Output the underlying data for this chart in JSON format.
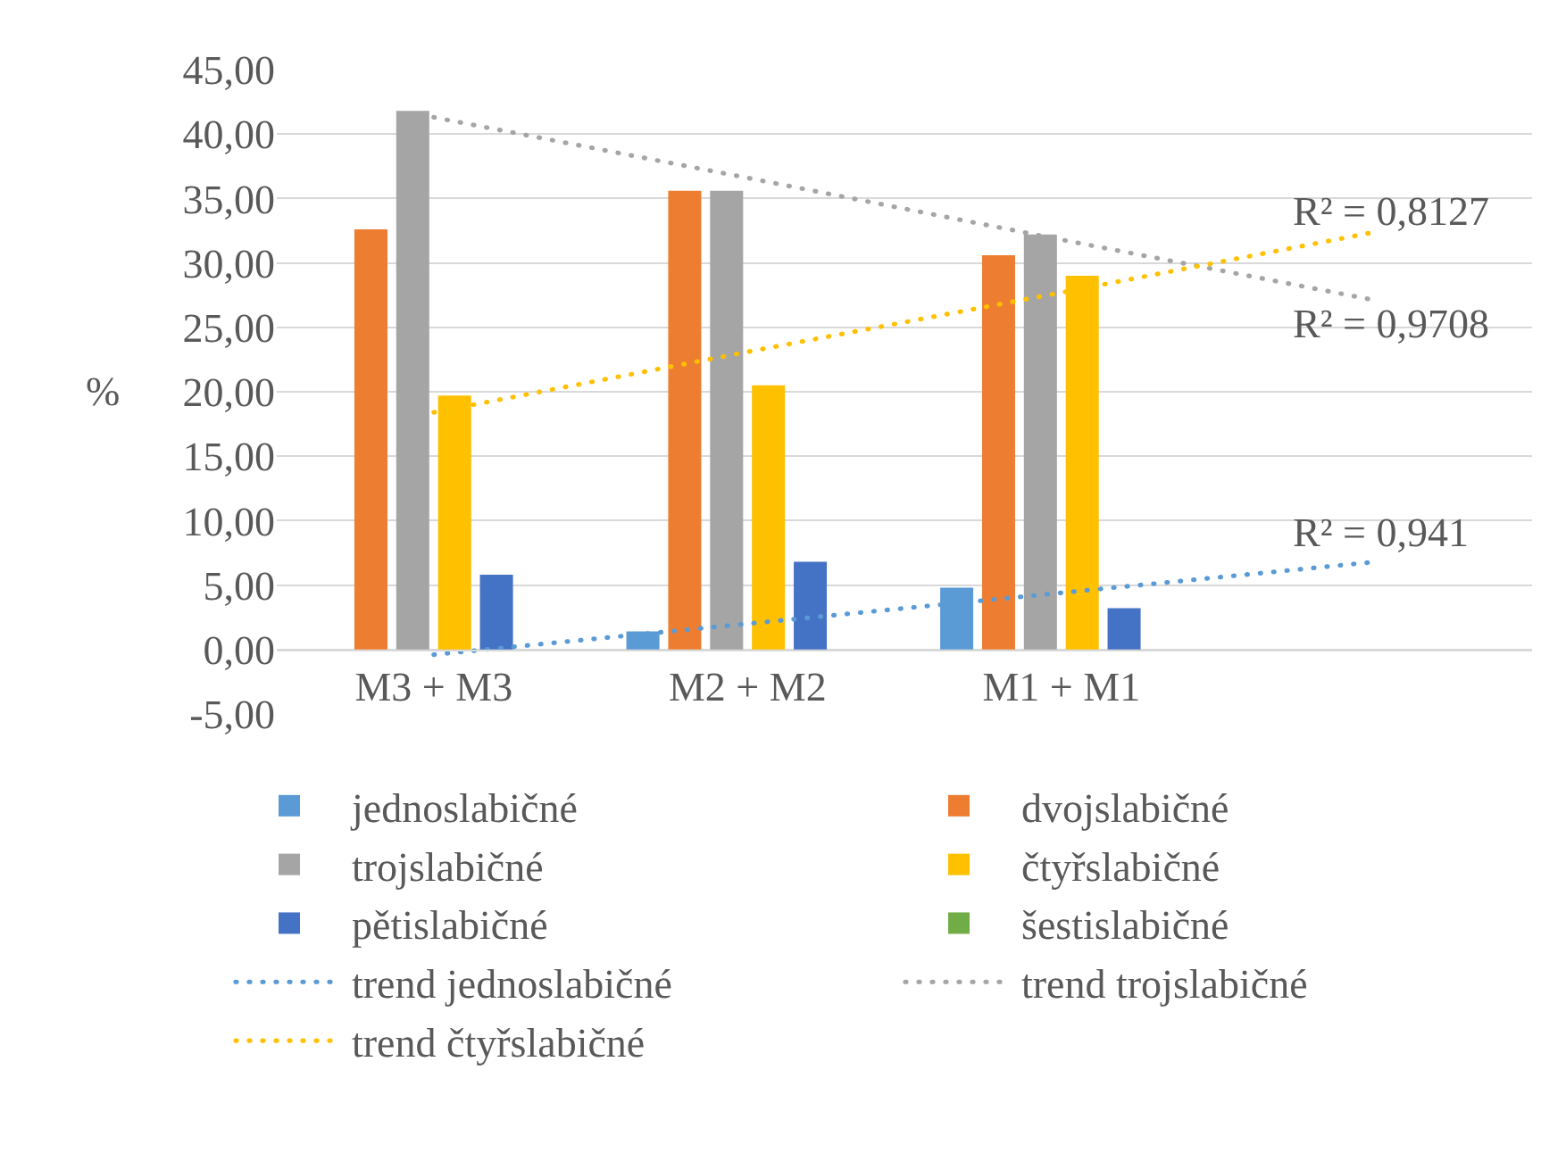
{
  "chart_data": {
    "type": "bar",
    "categories": [
      "M3 + M3",
      "M2 + M2",
      "M1 + M1",
      null
    ],
    "series": [
      {
        "name": "jednoslabičné",
        "color": "#5b9bd5",
        "values": [
          0,
          1.4,
          4.8,
          null
        ]
      },
      {
        "name": "dvojslabičné",
        "color": "#ed7d31",
        "values": [
          32.6,
          35.6,
          30.6,
          null
        ]
      },
      {
        "name": "trojslabičné",
        "color": "#a5a5a5",
        "values": [
          41.8,
          35.6,
          32.2,
          null
        ]
      },
      {
        "name": "čtyřslabičné",
        "color": "#ffc000",
        "values": [
          19.7,
          20.5,
          29.0,
          null
        ]
      },
      {
        "name": "pětislabičné",
        "color": "#4472c4",
        "values": [
          5.8,
          6.8,
          3.2,
          null
        ]
      },
      {
        "name": "šestislabičné",
        "color": "#70ad47",
        "values": [
          0,
          0,
          0,
          null
        ]
      },
      {
        "name": "trend jednoslabičné",
        "type": "line",
        "color": "#5b9bd5",
        "values": [
          -0.4,
          2.0,
          4.4,
          6.8
        ]
      },
      {
        "name": "trend trojslabičné",
        "type": "line",
        "color": "#a5a5a5",
        "values": [
          41.3,
          36.6,
          31.8,
          27.1
        ]
      },
      {
        "name": "trend čtyřslabičné",
        "type": "line",
        "color": "#ffc000",
        "values": [
          18.4,
          23.1,
          27.7,
          32.4
        ]
      }
    ],
    "ylabel": "%",
    "ylim": [
      -5,
      45
    ],
    "yticks": [
      {
        "value": -5,
        "label": "-5,00"
      },
      {
        "value": 0,
        "label": "0,00"
      },
      {
        "value": 5,
        "label": "5,00"
      },
      {
        "value": 10,
        "label": "10,00"
      },
      {
        "value": 15,
        "label": "15,00"
      },
      {
        "value": 20,
        "label": "20,00"
      },
      {
        "value": 25,
        "label": "25,00"
      },
      {
        "value": 30,
        "label": "30,00"
      },
      {
        "value": 35,
        "label": "35,00"
      },
      {
        "value": 40,
        "label": "40,00"
      },
      {
        "value": 45,
        "label": "45,00"
      }
    ],
    "grid": "y",
    "legend": "bottom",
    "line_style": "dotted",
    "annotations": [
      "R² = 0,8127",
      "R² = 0,9708",
      "R² = 0,941"
    ]
  }
}
